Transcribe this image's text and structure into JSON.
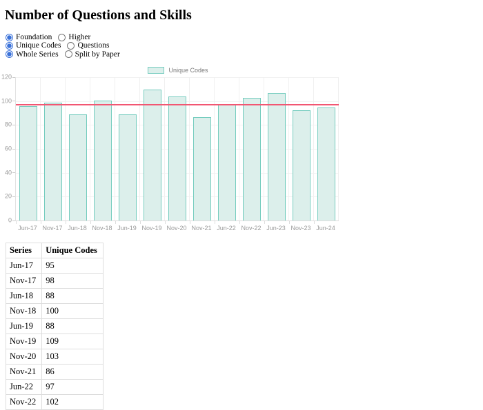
{
  "page": {
    "title": "Number of Questions and Skills"
  },
  "controls": {
    "groups": [
      {
        "id": "tier",
        "options": [
          {
            "label": "Foundation",
            "checked": true
          },
          {
            "label": "Higher",
            "checked": false
          }
        ]
      },
      {
        "id": "metric",
        "options": [
          {
            "label": "Unique Codes",
            "checked": true
          },
          {
            "label": "Questions",
            "checked": false
          }
        ]
      },
      {
        "id": "mode",
        "options": [
          {
            "label": "Whole Series",
            "checked": true
          },
          {
            "label": "Split by Paper",
            "checked": false
          }
        ]
      }
    ]
  },
  "chart_data": {
    "type": "bar",
    "title": "",
    "legend": "Unique Codes",
    "legend_position": "top-center",
    "categories": [
      "Jun-17",
      "Nov-17",
      "Jun-18",
      "Nov-18",
      "Jun-19",
      "Nov-19",
      "Nov-20",
      "Nov-21",
      "Jun-22",
      "Nov-22",
      "Jun-23",
      "Nov-23",
      "Jun-24"
    ],
    "values": [
      95,
      98,
      88,
      100,
      88,
      109,
      103,
      86,
      97,
      102,
      106,
      92,
      94
    ],
    "average_line": 97,
    "xlabel": "",
    "ylabel": "",
    "ylim": [
      0,
      120
    ],
    "yticks": [
      0,
      20,
      40,
      60,
      80,
      100,
      120
    ],
    "grid": true,
    "colors": {
      "bar_fill": "#dcefeb",
      "bar_border": "#74ccbe",
      "average_line": "#f25672",
      "axis_text": "#999999",
      "gridline": "#f2f2f2"
    }
  },
  "table": {
    "headers": [
      "Series",
      "Unique Codes"
    ],
    "rows": [
      [
        "Jun-17",
        "95"
      ],
      [
        "Nov-17",
        "98"
      ],
      [
        "Jun-18",
        "88"
      ],
      [
        "Nov-18",
        "100"
      ],
      [
        "Jun-19",
        "88"
      ],
      [
        "Nov-19",
        "109"
      ],
      [
        "Nov-20",
        "103"
      ],
      [
        "Nov-21",
        "86"
      ],
      [
        "Jun-22",
        "97"
      ],
      [
        "Nov-22",
        "102"
      ]
    ]
  }
}
